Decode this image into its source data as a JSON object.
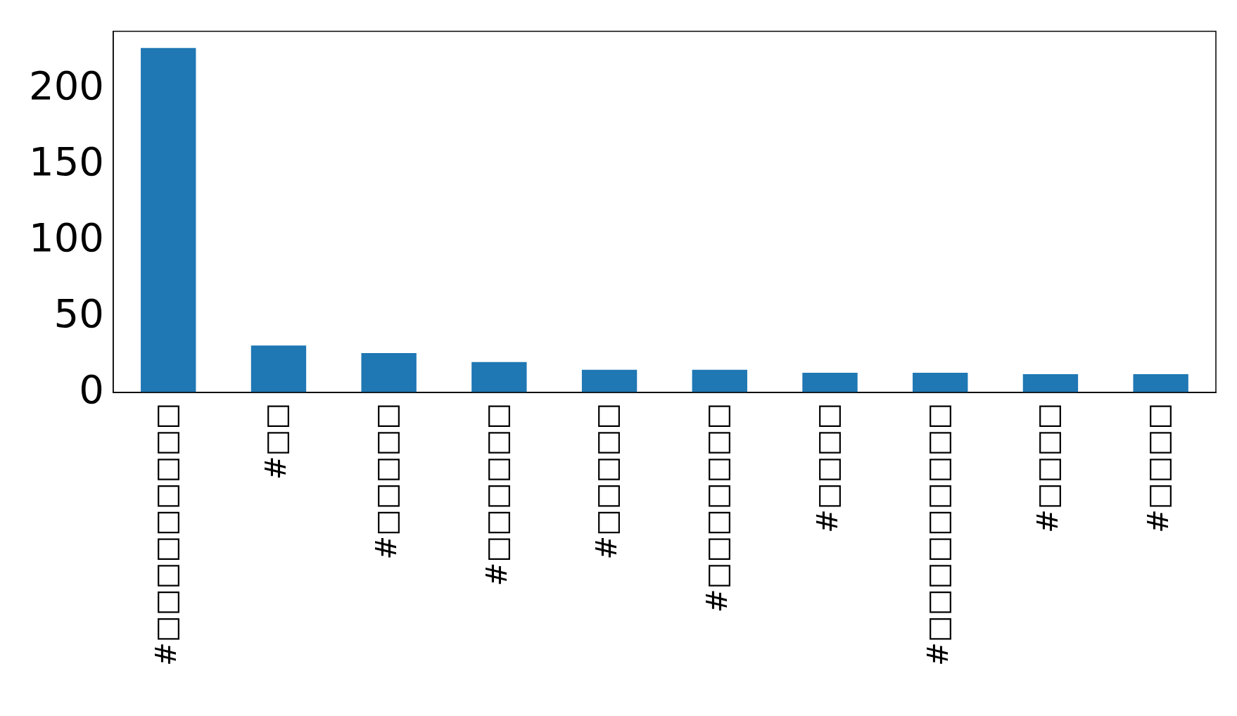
{
  "chart_data": {
    "type": "bar",
    "categories": [
      "#□□□□□□□□□",
      "#□□",
      "#□□□□□",
      "#□□□□□□",
      "#□□□□□",
      "#□□□□□□□",
      "#□□□□",
      "#□□□□□□□□□",
      "#□□□□",
      "#□□□□"
    ],
    "values": [
      227,
      31,
      26,
      20,
      15,
      15,
      13,
      13,
      12,
      12
    ],
    "color": "#1f77b4",
    "ylim": [
      0,
      238
    ],
    "yticks": [
      0,
      50,
      100,
      150,
      200
    ],
    "grid": false,
    "legend": false
  }
}
